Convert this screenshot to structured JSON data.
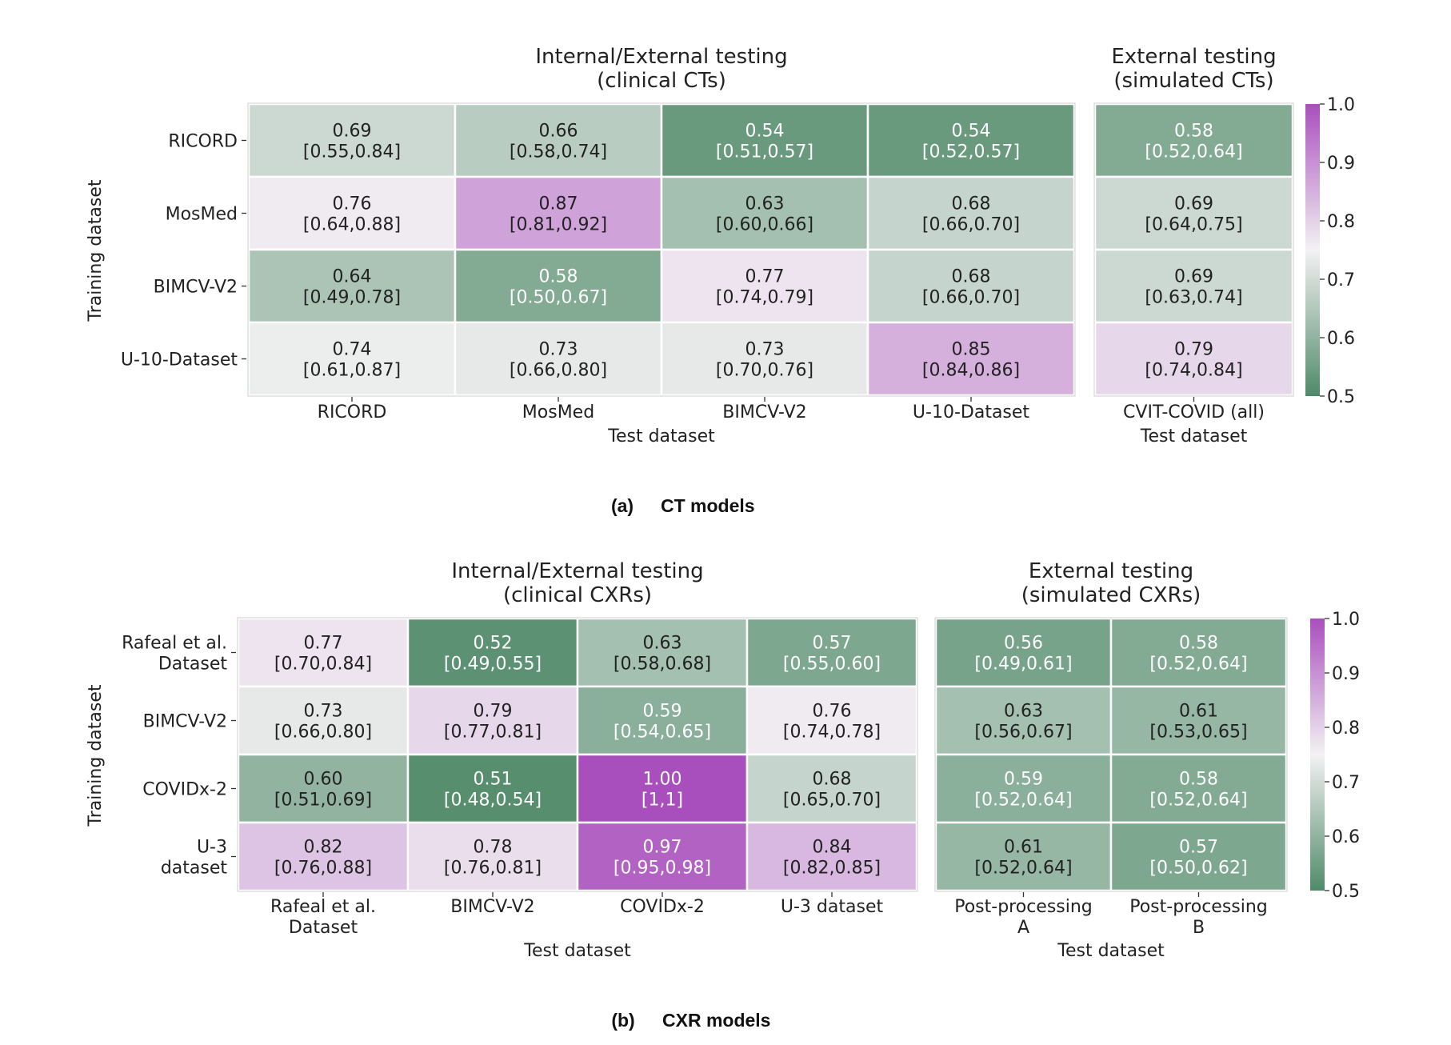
{
  "colors": {
    "scale_low": "#4f8a68",
    "scale_mid": "#f3f1f3",
    "scale_high": "#a94fbd",
    "cell_border": "#ffffff",
    "text_dark": "#222222",
    "text_light": "#ffffff"
  },
  "colorbar_ticks": [
    "1.0",
    "0.9",
    "0.8",
    "0.7",
    "0.6",
    "0.5"
  ],
  "chart_data": [
    {
      "type": "heatmap",
      "caption_letter": "(a)",
      "caption_text": "CT models",
      "ylabel": "Training dataset",
      "vmin": 0.5,
      "vmax": 1.0,
      "rows": [
        "RICORD",
        "MosMed",
        "BIMCV-V2",
        "U-10-Dataset"
      ],
      "panels": [
        {
          "title_line1": "Internal/External testing",
          "title_line2": "(clinical CTs)",
          "xlabel": "Test dataset",
          "columns": [
            [
              "RICORD"
            ],
            [
              "MosMed"
            ],
            [
              "BIMCV-V2"
            ],
            [
              "U-10-Dataset"
            ]
          ],
          "values": [
            [
              0.69,
              0.66,
              0.54,
              0.54
            ],
            [
              0.76,
              0.87,
              0.63,
              0.68
            ],
            [
              0.64,
              0.58,
              0.77,
              0.68
            ],
            [
              0.74,
              0.73,
              0.73,
              0.85
            ]
          ],
          "ci": [
            [
              "[0.55,0.84]",
              "[0.58,0.74]",
              "[0.51,0.57]",
              "[0.52,0.57]"
            ],
            [
              "[0.64,0.88]",
              "[0.81,0.92]",
              "[0.60,0.66]",
              "[0.66,0.70]"
            ],
            [
              "[0.49,0.78]",
              "[0.50,0.67]",
              "[0.74,0.79]",
              "[0.66,0.70]"
            ],
            [
              "[0.61,0.87]",
              "[0.66,0.80]",
              "[0.70,0.76]",
              "[0.84,0.86]"
            ]
          ]
        },
        {
          "title_line1": "External testing",
          "title_line2": "(simulated CTs)",
          "xlabel": "Test dataset",
          "columns": [
            [
              "CVIT-COVID (all)"
            ]
          ],
          "values": [
            [
              0.58
            ],
            [
              0.69
            ],
            [
              0.69
            ],
            [
              0.79
            ]
          ],
          "ci": [
            [
              "[0.52,0.64]"
            ],
            [
              "[0.64,0.75]"
            ],
            [
              "[0.63,0.74]"
            ],
            [
              "[0.74,0.84]"
            ]
          ]
        }
      ]
    },
    {
      "type": "heatmap",
      "caption_letter": "(b)",
      "caption_text": "CXR models",
      "ylabel": "Training dataset",
      "vmin": 0.5,
      "vmax": 1.0,
      "rows": [
        [
          "Rafeal et al.",
          "Dataset"
        ],
        [
          "BIMCV-V2"
        ],
        [
          "COVIDx-2"
        ],
        [
          "U-3",
          "dataset"
        ]
      ],
      "panels": [
        {
          "title_line1": "Internal/External testing",
          "title_line2": "(clinical CXRs)",
          "xlabel": "Test dataset",
          "columns": [
            [
              "Rafeal et al.",
              "Dataset"
            ],
            [
              "BIMCV-V2"
            ],
            [
              "COVIDx-2"
            ],
            [
              "U-3 dataset"
            ]
          ],
          "values": [
            [
              0.77,
              0.52,
              0.63,
              0.57
            ],
            [
              0.73,
              0.79,
              0.59,
              0.76
            ],
            [
              0.6,
              0.51,
              1.0,
              0.68
            ],
            [
              0.82,
              0.78,
              0.97,
              0.84
            ]
          ],
          "display": [
            [
              "0.77",
              "0.52",
              "0.63",
              "0.57"
            ],
            [
              "0.73",
              "0.79",
              "0.59",
              "0.76"
            ],
            [
              "0.60",
              "0.51",
              "1.00",
              "0.68"
            ],
            [
              "0.82",
              "0.78",
              "0.97",
              "0.84"
            ]
          ],
          "ci": [
            [
              "[0.70,0.84]",
              "[0.49,0.55]",
              "[0.58,0.68]",
              "[0.55,0.60]"
            ],
            [
              "[0.66,0.80]",
              "[0.77,0.81]",
              "[0.54,0.65]",
              "[0.74,0.78]"
            ],
            [
              "[0.51,0.69]",
              "[0.48,0.54]",
              "[1,1]",
              "[0.65,0.70]"
            ],
            [
              "[0.76,0.88]",
              "[0.76,0.81]",
              "[0.95,0.98]",
              "[0.82,0.85]"
            ]
          ]
        },
        {
          "title_line1": "External testing",
          "title_line2": "(simulated CXRs)",
          "xlabel": "Test dataset",
          "columns": [
            [
              "Post-processing",
              "A"
            ],
            [
              "Post-processing",
              "B"
            ]
          ],
          "values": [
            [
              0.56,
              0.58
            ],
            [
              0.63,
              0.61
            ],
            [
              0.59,
              0.58
            ],
            [
              0.61,
              0.57
            ]
          ],
          "ci": [
            [
              "[0.49,0.61]",
              "[0.52,0.64]"
            ],
            [
              "[0.56,0.67]",
              "[0.53,0.65]"
            ],
            [
              "[0.52,0.64]",
              "[0.52,0.64]"
            ],
            [
              "[0.52,0.64]",
              "[0.50,0.62]"
            ]
          ]
        }
      ]
    }
  ]
}
